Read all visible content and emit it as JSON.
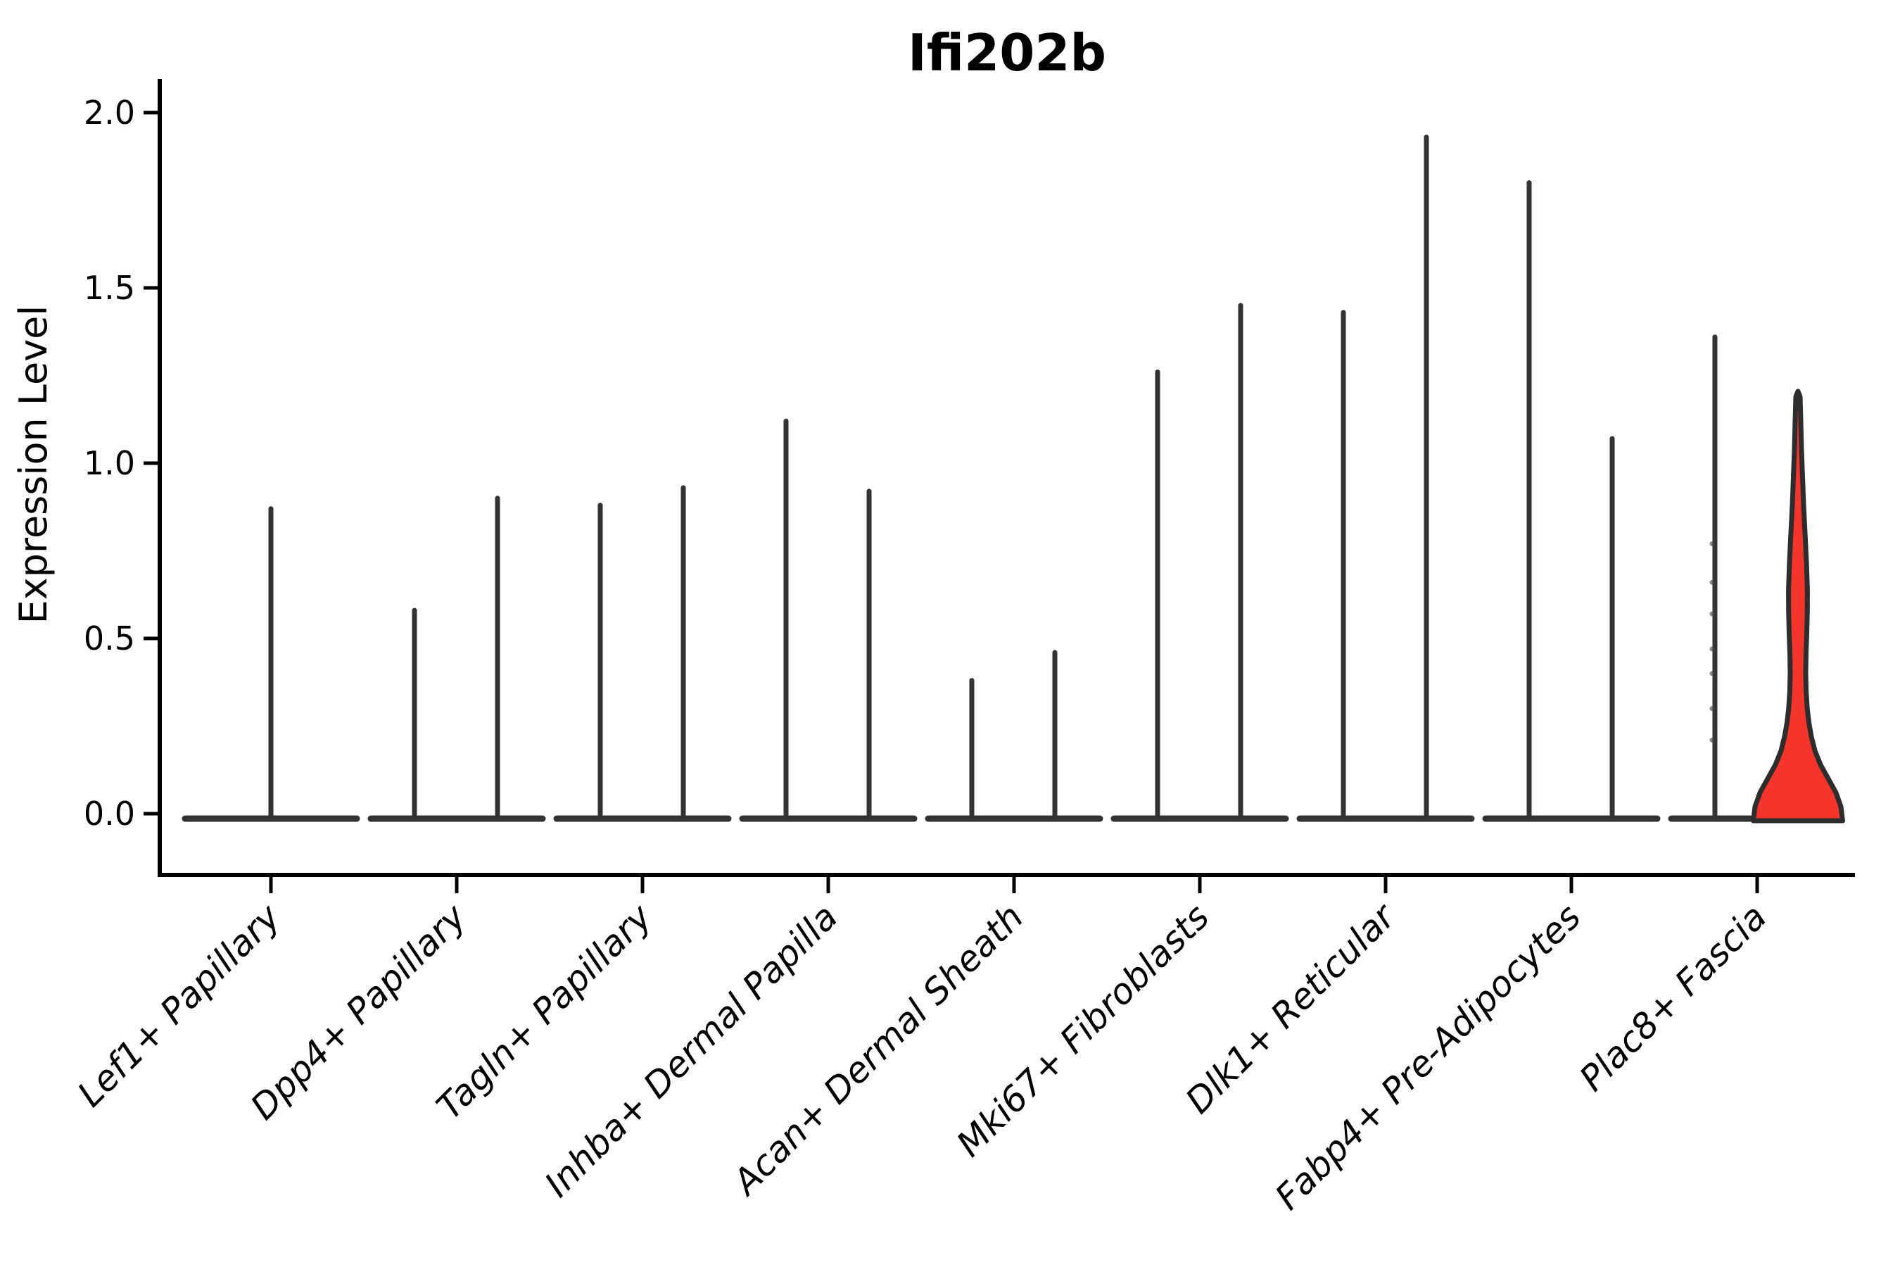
{
  "chart_data": {
    "type": "violin",
    "title": "Ifi202b",
    "xlabel": "",
    "ylabel": "Expression Level",
    "ylim": [
      -0.06,
      2.09
    ],
    "grid": false,
    "legend": null,
    "yticks": {
      "values": [
        0.0,
        0.5,
        1.0,
        1.5,
        2.0
      ],
      "labels": [
        "0.0",
        "0.5",
        "1.0",
        "1.5",
        "2.0"
      ]
    },
    "categories": [
      "Lef1+ Papillary",
      "Dpp4+ Papillary",
      "Tagln+ Papillary",
      "Inhba+ Dermal Papilla",
      "Acan+ Dermal Sheath",
      "Mki67+ Fibroblasts",
      "Dlk1+ Reticular",
      "Fabp4+ Pre-Adipocytes",
      "Plac8+ Fascia"
    ],
    "series": [
      {
        "category": "Lef1+ Papillary",
        "violins": [
          {
            "position": "center",
            "max": 0.87,
            "fill": "none"
          }
        ]
      },
      {
        "category": "Dpp4+ Papillary",
        "violins": [
          {
            "position": "left",
            "max": 0.58,
            "fill": "none"
          },
          {
            "position": "right",
            "max": 0.9,
            "fill": "none"
          }
        ]
      },
      {
        "category": "Tagln+ Papillary",
        "violins": [
          {
            "position": "left",
            "max": 0.88,
            "fill": "none"
          },
          {
            "position": "right",
            "max": 0.93,
            "fill": "none"
          }
        ]
      },
      {
        "category": "Inhba+ Dermal Papilla",
        "violins": [
          {
            "position": "left",
            "max": 1.12,
            "fill": "none"
          },
          {
            "position": "right",
            "max": 0.92,
            "fill": "none"
          }
        ]
      },
      {
        "category": "Acan+ Dermal Sheath",
        "violins": [
          {
            "position": "left",
            "max": 0.38,
            "fill": "none"
          },
          {
            "position": "right",
            "max": 0.46,
            "fill": "none"
          }
        ]
      },
      {
        "category": "Mki67+ Fibroblasts",
        "violins": [
          {
            "position": "left",
            "max": 1.26,
            "fill": "none"
          },
          {
            "position": "right",
            "max": 1.45,
            "fill": "none"
          }
        ]
      },
      {
        "category": "Dlk1+ Reticular",
        "violins": [
          {
            "position": "left",
            "max": 1.43,
            "fill": "none"
          },
          {
            "position": "right",
            "max": 1.93,
            "fill": "none"
          }
        ]
      },
      {
        "category": "Fabp4+ Pre-Adipocytes",
        "violins": [
          {
            "position": "left",
            "max": 1.8,
            "fill": "none"
          },
          {
            "position": "right",
            "max": 1.07,
            "fill": "none"
          }
        ]
      },
      {
        "category": "Plac8+ Fascia",
        "violins": [
          {
            "position": "left",
            "max": 1.36,
            "fill": "none"
          },
          {
            "position": "right",
            "max": 1.2,
            "fill": "red"
          }
        ]
      }
    ],
    "red_violin_profile": [
      [
        1.205,
        0
      ],
      [
        1.19,
        3
      ],
      [
        1.12,
        4
      ],
      [
        1.04,
        5
      ],
      [
        0.96,
        6.5
      ],
      [
        0.88,
        8
      ],
      [
        0.79,
        10.3
      ],
      [
        0.71,
        12.2
      ],
      [
        0.64,
        13.4
      ],
      [
        0.58,
        13.3
      ],
      [
        0.52,
        12.6
      ],
      [
        0.46,
        11.5
      ],
      [
        0.4,
        11.0
      ],
      [
        0.35,
        11.6
      ],
      [
        0.3,
        13.2
      ],
      [
        0.26,
        15.5
      ],
      [
        0.22,
        19
      ],
      [
        0.18,
        24
      ],
      [
        0.14,
        32
      ],
      [
        0.1,
        43
      ],
      [
        0.06,
        54
      ],
      [
        0.02,
        61
      ],
      [
        -0.02,
        63.5
      ]
    ],
    "jitter_points": {
      "category": "Plac8+ Fascia",
      "position": "left",
      "values": [
        0.77,
        0.66,
        0.57,
        0.47,
        0.4,
        0.3,
        0.21
      ]
    },
    "colors": {
      "violin_outline": "#333333",
      "baseline": "#333333",
      "axis": "#000000",
      "text": "#000000",
      "highlight_fill": "#f5342c",
      "highlight_stroke": "#2d2d2d",
      "background": "#ffffff"
    }
  }
}
